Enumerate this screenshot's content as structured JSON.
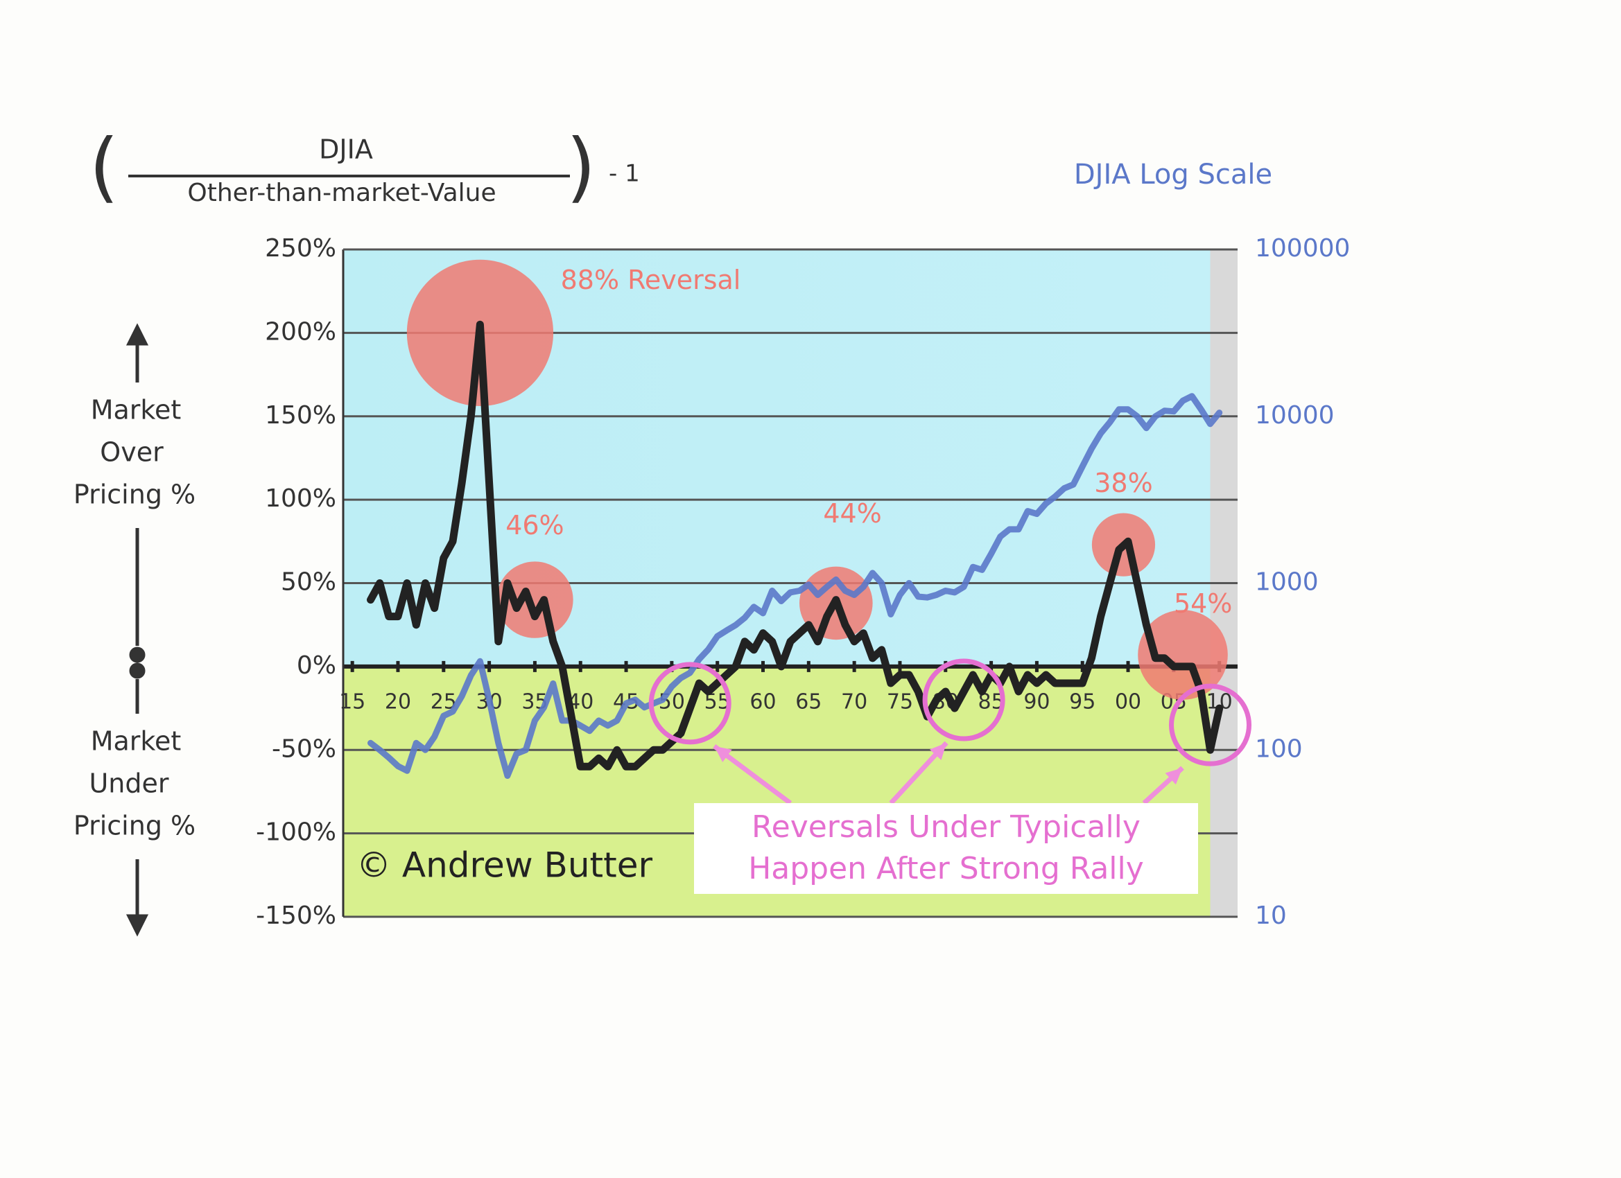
{
  "chart_data": {
    "type": "line",
    "formula": {
      "numerator": "DJIA",
      "denominator": "Other-than-market-Value",
      "suffix": "- 1"
    },
    "y2_title": "DJIA Log Scale",
    "left_labels": {
      "over": [
        "Market",
        "Over",
        "Pricing %"
      ],
      "under": [
        "Market",
        "Under",
        "Pricing %"
      ]
    },
    "credit": "© Andrew Butter",
    "annotation_lines": [
      "Reversals Under Typically",
      "Happen After Strong Rally"
    ],
    "xlim": [
      1914,
      2012
    ],
    "xticks": [
      {
        "value": 1915,
        "label": "15"
      },
      {
        "value": 1920,
        "label": "20"
      },
      {
        "value": 1925,
        "label": "25"
      },
      {
        "value": 1930,
        "label": "30"
      },
      {
        "value": 1935,
        "label": "35"
      },
      {
        "value": 1940,
        "label": "40"
      },
      {
        "value": 1945,
        "label": "45"
      },
      {
        "value": 1950,
        "label": "50"
      },
      {
        "value": 1955,
        "label": "55"
      },
      {
        "value": 1960,
        "label": "60"
      },
      {
        "value": 1965,
        "label": "65"
      },
      {
        "value": 1970,
        "label": "70"
      },
      {
        "value": 1975,
        "label": "75"
      },
      {
        "value": 1980,
        "label": "80"
      },
      {
        "value": 1985,
        "label": "85"
      },
      {
        "value": 1990,
        "label": "90"
      },
      {
        "value": 1995,
        "label": "95"
      },
      {
        "value": 2000,
        "label": "00"
      },
      {
        "value": 2005,
        "label": "05"
      },
      {
        "value": 2010,
        "label": "10"
      }
    ],
    "ylim": [
      -150,
      250
    ],
    "yticks": [
      {
        "value": 250,
        "label": "250%"
      },
      {
        "value": 200,
        "label": "200%"
      },
      {
        "value": 150,
        "label": "150%"
      },
      {
        "value": 100,
        "label": "100%"
      },
      {
        "value": 50,
        "label": "50%"
      },
      {
        "value": 0,
        "label": "0%"
      },
      {
        "value": -50,
        "label": "-50%"
      },
      {
        "value": -100,
        "label": "-100%"
      },
      {
        "value": -150,
        "label": "-150%"
      }
    ],
    "y2lim": [
      10,
      100000
    ],
    "y2ticks": [
      100000,
      10000,
      1000,
      100,
      10
    ],
    "y2log": true,
    "grid": true,
    "shaded_after": 2009,
    "x": [
      1917,
      1918,
      1919,
      1920,
      1921,
      1922,
      1923,
      1924,
      1925,
      1926,
      1927,
      1928,
      1929,
      1930,
      1931,
      1932,
      1933,
      1934,
      1935,
      1936,
      1937,
      1938,
      1939,
      1940,
      1941,
      1942,
      1943,
      1944,
      1945,
      1946,
      1947,
      1948,
      1949,
      1950,
      1951,
      1952,
      1953,
      1954,
      1955,
      1956,
      1957,
      1958,
      1959,
      1960,
      1961,
      1962,
      1963,
      1964,
      1965,
      1966,
      1967,
      1968,
      1969,
      1970,
      1971,
      1972,
      1973,
      1974,
      1975,
      1976,
      1977,
      1978,
      1979,
      1980,
      1981,
      1982,
      1983,
      1984,
      1985,
      1986,
      1987,
      1988,
      1989,
      1990,
      1991,
      1992,
      1993,
      1994,
      1995,
      1996,
      1997,
      1998,
      1999,
      2000,
      2001,
      2002,
      2003,
      2004,
      2005,
      2006,
      2007,
      2008,
      2009,
      2010
    ],
    "series": [
      {
        "color": "#5b78c9",
        "axis": "y2",
        "values": [
          110,
          100,
          90,
          80,
          75,
          110,
          100,
          120,
          160,
          170,
          210,
          280,
          340,
          200,
          110,
          70,
          95,
          100,
          150,
          180,
          250,
          150,
          150,
          140,
          130,
          150,
          140,
          150,
          190,
          200,
          180,
          190,
          200,
          240,
          270,
          290,
          350,
          400,
          480,
          520,
          560,
          620,
          720,
          660,
          900,
          780,
          880,
          900,
          980,
          850,
          950,
          1050,
          900,
          850,
          950,
          1150,
          1000,
          650,
          850,
          1000,
          830,
          820,
          850,
          900,
          880,
          950,
          1250,
          1200,
          1500,
          1900,
          2100,
          2100,
          2700,
          2600,
          3000,
          3300,
          3700,
          3900,
          5000,
          6400,
          7900,
          9200,
          11000,
          11000,
          10000,
          8500,
          10000,
          10800,
          10700,
          12400,
          13200,
          11000,
          9000,
          10500
        ]
      },
      {
        "color": "#222222",
        "values": [
          40,
          50,
          30,
          30,
          50,
          25,
          50,
          35,
          65,
          75,
          110,
          150,
          205,
          110,
          15,
          50,
          35,
          45,
          30,
          40,
          15,
          0,
          -30,
          -60,
          -60,
          -55,
          -60,
          -50,
          -60,
          -60,
          -55,
          -50,
          -50,
          -45,
          -40,
          -25,
          -10,
          -15,
          -10,
          -5,
          0,
          15,
          10,
          20,
          15,
          0,
          15,
          20,
          25,
          15,
          30,
          40,
          25,
          15,
          20,
          5,
          10,
          -10,
          -5,
          -5,
          -15,
          -30,
          -20,
          -15,
          -25,
          -15,
          -5,
          -15,
          -5,
          -10,
          0,
          -15,
          -5,
          -10,
          -5,
          -10,
          -10,
          -10,
          -10,
          5,
          30,
          50,
          70,
          75,
          50,
          25,
          5,
          5,
          0,
          0,
          0,
          -15,
          -50,
          -25
        ]
      }
    ],
    "reversals": [
      {
        "x": 1929,
        "y": 200,
        "size": 88,
        "label": "88% Reversal"
      },
      {
        "x": 1935,
        "y": 40,
        "size": 46,
        "label": "46%"
      },
      {
        "x": 1968,
        "y": 38,
        "size": 44,
        "label": "44%"
      },
      {
        "x": 1999.5,
        "y": 73,
        "size": 38,
        "label": "38%"
      },
      {
        "x": 2006,
        "y": 7,
        "size": 54,
        "label": "54%"
      }
    ],
    "highlights": [
      {
        "x": 1952,
        "y": -22
      },
      {
        "x": 1982,
        "y": -20
      },
      {
        "x": 2009,
        "y": -35
      }
    ]
  }
}
